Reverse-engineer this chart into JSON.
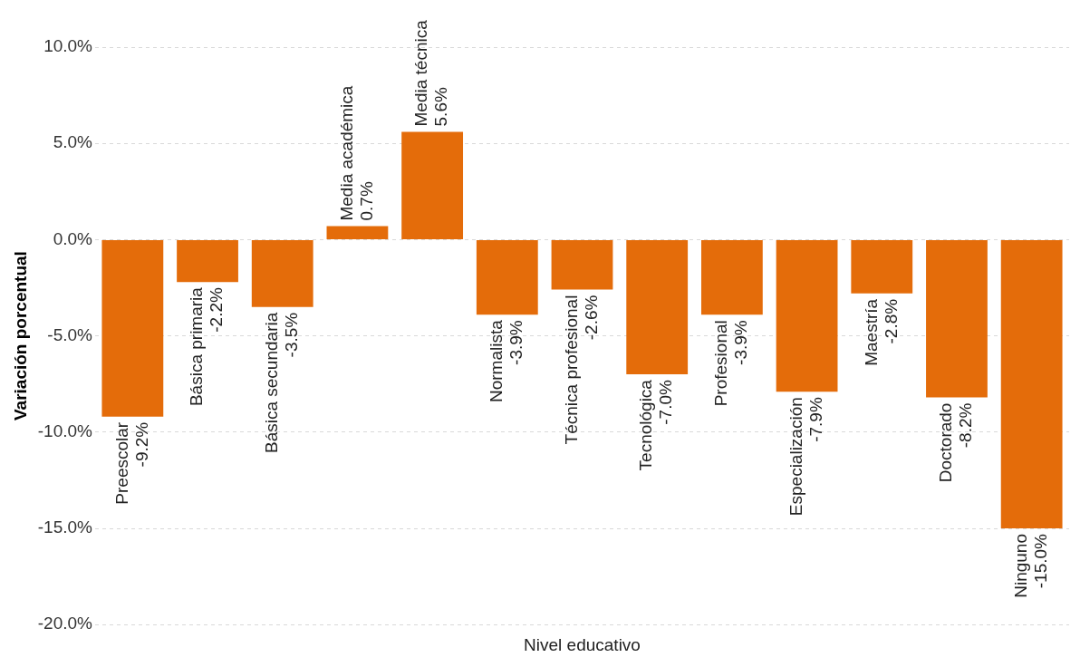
{
  "chart_data": {
    "type": "bar",
    "xlabel": "Nivel educativo",
    "ylabel": "Variación porcentual",
    "categories": [
      "Preescolar",
      "Básica primaria",
      "Básica secundaria",
      "Media académica",
      "Media técnica",
      "Normalista",
      "Técnica profesional",
      "Tecnológica",
      "Profesional",
      "Especialización",
      "Maestría",
      "Doctorado",
      "Ninguno"
    ],
    "values": [
      -9.2,
      -2.2,
      -3.5,
      0.7,
      5.6,
      -3.9,
      -2.6,
      -7.0,
      -3.9,
      -7.9,
      -2.8,
      -8.2,
      -15.0
    ],
    "value_labels": [
      "-9.2%",
      "-2.2%",
      "-3.5%",
      "0.7%",
      "5.6%",
      "-3.9%",
      "-2.6%",
      "-7.0%",
      "-3.9%",
      "-7.9%",
      "-2.8%",
      "-8.2%",
      "-15.0%"
    ],
    "color": "#e46c0a",
    "ylim": [
      -20,
      10
    ],
    "yticks": [
      {
        "value": -20,
        "label": "-20.0%"
      },
      {
        "value": -15,
        "label": "-15.0%"
      },
      {
        "value": -10,
        "label": "-10.0%"
      },
      {
        "value": -5,
        "label": "-5.0%"
      },
      {
        "value": 0,
        "label": "0.0%"
      },
      {
        "value": 5,
        "label": "5.0%"
      },
      {
        "value": 10,
        "label": "10.0%"
      }
    ],
    "grid": "y",
    "legend": false,
    "tick_labels": "y"
  }
}
